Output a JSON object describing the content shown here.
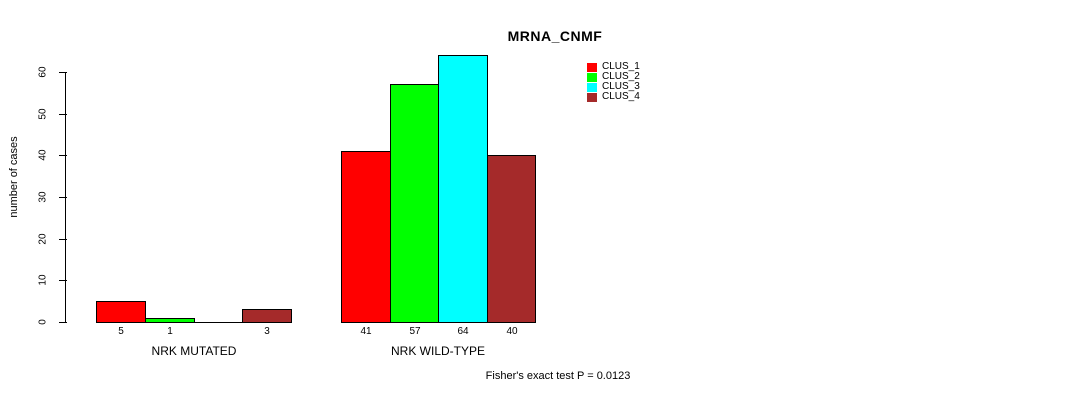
{
  "chart_data": {
    "type": "bar",
    "title": "MRNA_CNMF",
    "ylabel": "number of cases",
    "footer": "Fisher's exact test P = 0.0123",
    "ylim": [
      0,
      66
    ],
    "yticks": [
      0,
      10,
      20,
      30,
      40,
      50,
      60
    ],
    "grid": false,
    "background": "#ffffff",
    "bar_border_color": "#000000",
    "series_colors": [
      "#ff0000",
      "#00ff00",
      "#00ffff",
      "#a52a2a"
    ],
    "legend": {
      "position": "top-right",
      "items": [
        {
          "label": "CLUS_1",
          "color": "#ff0000"
        },
        {
          "label": "CLUS_2",
          "color": "#00ff00"
        },
        {
          "label": "CLUS_3",
          "color": "#00ffff"
        },
        {
          "label": "CLUS_4",
          "color": "#a52a2a"
        }
      ]
    },
    "groups": [
      {
        "label": "NRK MUTATED",
        "values": [
          5,
          1,
          0,
          3
        ],
        "value_labels": [
          "5",
          "1",
          "",
          "3"
        ]
      },
      {
        "label": "NRK WILD-TYPE",
        "values": [
          41,
          57,
          64,
          40
        ],
        "value_labels": [
          "41",
          "57",
          "64",
          "40"
        ]
      }
    ]
  }
}
